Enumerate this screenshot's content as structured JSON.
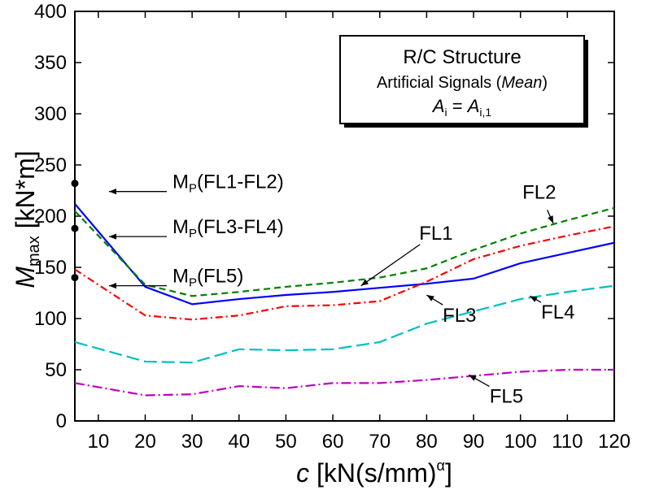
{
  "chart_data": {
    "type": "line",
    "xlabel": {
      "symbol": "c",
      "rest": "[kN(s/mm)",
      "sup": "α",
      "close": "]"
    },
    "ylabel": {
      "symbol": "M",
      "sub": "max",
      "rest": "[kN*m]"
    },
    "xlim": [
      5,
      120
    ],
    "ylim": [
      0,
      400
    ],
    "xticks": [
      10,
      20,
      30,
      40,
      50,
      60,
      70,
      80,
      90,
      100,
      110,
      120
    ],
    "yticks": [
      0,
      50,
      100,
      150,
      200,
      250,
      300,
      350,
      400
    ],
    "grid": false,
    "series": [
      {
        "name": "FL1",
        "color": "#0000ff",
        "dash": "",
        "x": [
          5,
          20,
          30,
          40,
          50,
          60,
          70,
          80,
          90,
          100,
          110,
          120
        ],
        "y": [
          212,
          131,
          114,
          119,
          123,
          126,
          130,
          134,
          139,
          154,
          164,
          174
        ]
      },
      {
        "name": "FL2",
        "color": "#008000",
        "dash": "8,5",
        "x": [
          5,
          20,
          30,
          40,
          50,
          60,
          70,
          80,
          90,
          100,
          110,
          120
        ],
        "y": [
          205,
          133,
          122,
          126,
          131,
          135,
          140,
          149,
          167,
          183,
          196,
          208
        ]
      },
      {
        "name": "FL3",
        "color": "#ff0000",
        "dash": "9,4,2,4",
        "x": [
          5,
          20,
          30,
          40,
          50,
          60,
          70,
          80,
          90,
          100,
          110,
          120
        ],
        "y": [
          148,
          103,
          99,
          103,
          112,
          113,
          117,
          136,
          158,
          171,
          181,
          190
        ]
      },
      {
        "name": "FL4",
        "color": "#00bfbf",
        "dash": "16,6",
        "x": [
          5,
          20,
          30,
          40,
          50,
          60,
          70,
          80,
          90,
          100,
          110,
          120
        ],
        "y": [
          77,
          58,
          57,
          70,
          69,
          70,
          77,
          95,
          107,
          119,
          126,
          132
        ]
      },
      {
        "name": "FL5",
        "color": "#bf00bf",
        "dash": "12,4,2,4",
        "x": [
          5,
          20,
          30,
          40,
          50,
          60,
          70,
          80,
          90,
          100,
          110,
          120
        ],
        "y": [
          37,
          25,
          26,
          34,
          32,
          37,
          37,
          40,
          44,
          48,
          50,
          50
        ]
      }
    ],
    "mp_points": [
      {
        "label": "(FL1-FL2)",
        "x": 5,
        "y": 232
      },
      {
        "label": "(FL3-FL4)",
        "x": 5,
        "y": 188
      },
      {
        "label": "(FL5)",
        "x": 5,
        "y": 140
      }
    ],
    "mp_prefix": "M",
    "mp_sub": "P",
    "box": {
      "title": "R/C Structure",
      "line2_pre": "Artificial Signals (",
      "line2_em": "Mean",
      "line2_post": ")",
      "eq_lhs": "A",
      "eq_lhs_sub": "i",
      "eq_mid": " = ",
      "eq_rhs": "A",
      "eq_rhs_sub": "i,1"
    },
    "annotations": [
      {
        "text": "FL1",
        "label_x": 82,
        "label_y": 177,
        "target_x": 66,
        "target_y": 132
      },
      {
        "text": "FL2",
        "label_x": 104,
        "label_y": 217,
        "target_x": 107,
        "target_y": 193
      },
      {
        "text": "FL3",
        "label_x": 87,
        "label_y": 97,
        "target_x": 80,
        "target_y": 123
      },
      {
        "text": "FL4",
        "label_x": 108,
        "label_y": 100,
        "target_x": 102,
        "target_y": 122
      },
      {
        "text": "FL5",
        "label_x": 97,
        "label_y": 18,
        "target_x": 89,
        "target_y": 45
      }
    ]
  }
}
